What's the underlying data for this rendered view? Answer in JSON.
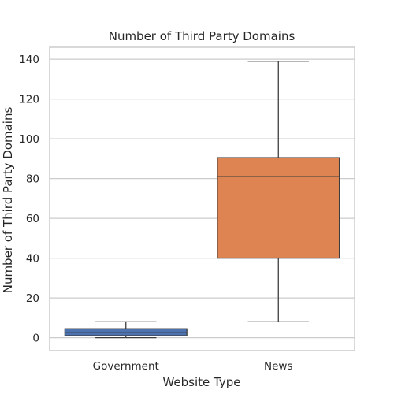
{
  "chart_data": {
    "type": "box",
    "title": "Number of Third Party Domains",
    "xlabel": "Website Type",
    "ylabel": "Number of Third Party Domains",
    "categories": [
      "Government",
      "News"
    ],
    "ylim": [
      -6.5,
      146
    ],
    "yticks": [
      0,
      20,
      40,
      60,
      80,
      100,
      120,
      140
    ],
    "grid": "horizontal",
    "boxes": [
      {
        "category": "Government",
        "whisker_low": 0,
        "q1": 1,
        "median": 2.5,
        "q3": 4.5,
        "whisker_high": 8,
        "color": "#4c72b0"
      },
      {
        "category": "News",
        "whisker_low": 8,
        "q1": 40,
        "median": 81,
        "q3": 90.5,
        "whisker_high": 139,
        "color": "#dd8452"
      }
    ],
    "colors": {
      "line": "#3d3d3d",
      "grid": "#cccccc",
      "frame": "#cccccc"
    }
  }
}
